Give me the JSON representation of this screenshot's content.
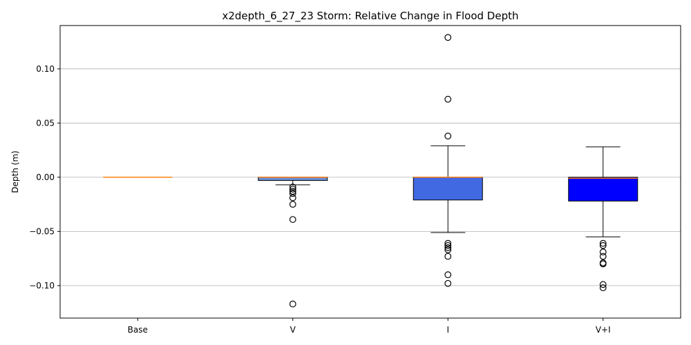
{
  "chart_data": {
    "type": "box",
    "title": "x2depth_6_27_23 Storm: Relative Change in Flood Depth",
    "xlabel": "",
    "ylabel": "Depth (m)",
    "ylim": [
      -0.13,
      0.14
    ],
    "yticks": [
      {
        "value": 0.1,
        "label": "0.10"
      },
      {
        "value": 0.05,
        "label": "0.05"
      },
      {
        "value": 0.0,
        "label": "0.00"
      },
      {
        "value": -0.05,
        "label": "−0.05"
      },
      {
        "value": -0.1,
        "label": "−0.10"
      }
    ],
    "grid": "horizontal",
    "median_color": "#ff7f0e",
    "boxes": [
      {
        "category": "Base",
        "fill": "#7aa0d6",
        "q1": 0.0,
        "median": 0.0,
        "q3": 0.0,
        "whisker_low": 0.0,
        "whisker_high": 0.0,
        "outliers": []
      },
      {
        "category": "V",
        "fill": "#6c8ed8",
        "q1": -0.003,
        "median": 0.0,
        "q3": 0.0,
        "whisker_low": -0.007,
        "whisker_high": 0.0,
        "outliers": [
          -0.009,
          -0.011,
          -0.013,
          -0.015,
          -0.019,
          -0.025,
          -0.039,
          -0.117
        ]
      },
      {
        "category": "I",
        "fill": "#4169e1",
        "q1": -0.021,
        "median": 0.0,
        "q3": 0.0,
        "whisker_low": -0.051,
        "whisker_high": 0.029,
        "outliers": [
          0.129,
          0.072,
          0.038,
          -0.061,
          -0.063,
          -0.065,
          -0.067,
          -0.073,
          -0.09,
          -0.098
        ]
      },
      {
        "category": "V+I",
        "fill": "#0000ff",
        "q1": -0.022,
        "median": -0.001,
        "q3": 0.0,
        "whisker_low": -0.055,
        "whisker_high": 0.028,
        "outliers": [
          -0.061,
          -0.063,
          -0.069,
          -0.073,
          -0.079,
          -0.08,
          -0.099,
          -0.102
        ]
      }
    ]
  }
}
